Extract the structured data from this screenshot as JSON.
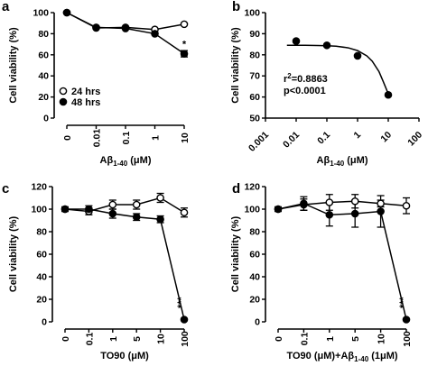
{
  "chart_data": [
    {
      "panel": "a",
      "type": "line",
      "xlabel": "Aβ",
      "xlabel_sub": "1-40",
      "xlabel_unit": "(μM)",
      "ylabel": "Cell viability (%)",
      "categories": [
        "0",
        "0.01",
        "0.1",
        "1",
        "10"
      ],
      "ylim": [
        0,
        100
      ],
      "yticks": [
        0,
        20,
        40,
        60,
        80,
        100
      ],
      "series": [
        {
          "name": "24 hrs",
          "marker": "open",
          "values": [
            100,
            85.5,
            86,
            84,
            89
          ],
          "errors": [
            0,
            0,
            0,
            0,
            0
          ]
        },
        {
          "name": "48 hrs",
          "marker": "filled",
          "values": [
            100,
            86,
            85,
            80,
            61
          ],
          "errors": [
            0,
            0,
            0,
            0,
            3
          ]
        }
      ],
      "annotations": [
        {
          "text": "*",
          "index": 4,
          "value": 67
        }
      ],
      "legend": "bottom-left"
    },
    {
      "panel": "b",
      "type": "scatter",
      "xlabel": "Aβ",
      "xlabel_sub": "1-40",
      "xlabel_unit": "(μM)",
      "ylabel": "Cell viability (%)",
      "xscale": "log",
      "xticks": [
        "0.001",
        "0.01",
        "0.1",
        "1",
        "10",
        "100"
      ],
      "xlim": [
        0.001,
        100
      ],
      "ylim": [
        50,
        100
      ],
      "yticks": [
        50,
        60,
        70,
        80,
        90,
        100
      ],
      "x": [
        0.01,
        0.1,
        1,
        10
      ],
      "y": [
        86.5,
        84.5,
        79.5,
        61
      ],
      "fit": {
        "x": [
          0.005,
          0.02,
          0.05,
          0.1,
          0.2,
          0.5,
          1,
          2,
          3,
          5,
          7,
          10
        ],
        "y": [
          84.5,
          84.5,
          84.4,
          84.3,
          84.1,
          83.3,
          82,
          79.5,
          77,
          72,
          67,
          61.5
        ]
      },
      "stats": [
        "r",
        "2",
        "=0.8863",
        "p<0.0001"
      ]
    },
    {
      "panel": "c",
      "type": "line",
      "xlabel": "TO90 (μM)",
      "ylabel": "Cell viability (%)",
      "categories": [
        "0",
        "0.1",
        "1",
        "5",
        "10",
        "100"
      ],
      "ylim": [
        0,
        120
      ],
      "yticks": [
        0,
        20,
        40,
        60,
        80,
        100,
        120
      ],
      "series": [
        {
          "name": "open",
          "marker": "open",
          "values": [
            100,
            98,
            104,
            104,
            110,
            97
          ],
          "errors": [
            2,
            3,
            4,
            4,
            4,
            4
          ]
        },
        {
          "name": "filled",
          "marker": "filled",
          "values": [
            100,
            100,
            96,
            93,
            91,
            2
          ],
          "errors": [
            2,
            3,
            4,
            3,
            3,
            1
          ]
        }
      ],
      "annotations": [
        {
          "text": "***",
          "index": 5,
          "value": 12
        }
      ]
    },
    {
      "panel": "d",
      "type": "line",
      "xlabel": "TO90 (μM)+Aβ",
      "xlabel_sub": "1-40",
      "xlabel_unit": "(1μM)",
      "ylabel": "Cell viability (%)",
      "categories": [
        "0",
        "0.1",
        "1",
        "5",
        "10",
        "100"
      ],
      "ylim": [
        0,
        120
      ],
      "yticks": [
        0,
        20,
        40,
        60,
        80,
        100,
        120
      ],
      "series": [
        {
          "name": "open",
          "marker": "open",
          "values": [
            100,
            104,
            106,
            107,
            105,
            103
          ],
          "errors": [
            2,
            5,
            7,
            6,
            3,
            7
          ]
        },
        {
          "name": "filled",
          "marker": "filled",
          "values": [
            100,
            105,
            95,
            96,
            98,
            2
          ],
          "errors": [
            2,
            6,
            10,
            12,
            14,
            1
          ]
        }
      ],
      "annotations": [
        {
          "text": "***",
          "index": 5,
          "value": 12
        }
      ]
    }
  ]
}
